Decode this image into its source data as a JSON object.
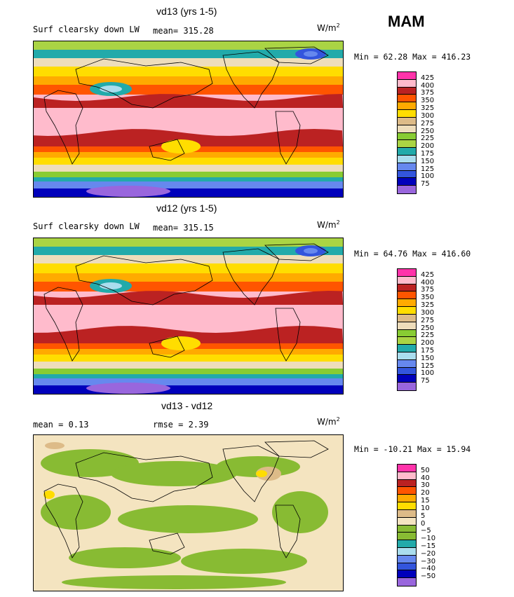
{
  "season": "MAM",
  "colors": {
    "abs": [
      "#9966dd",
      "#0000bb",
      "#3355dd",
      "#6688ee",
      "#aaddee",
      "#22aaaa",
      "#aad444",
      "#88cc33",
      "#eeddbb",
      "#ddbb88",
      "#ffdd00",
      "#ffaa00",
      "#ff5500",
      "#bb2222",
      "#ffbbcc",
      "#ff33aa"
    ],
    "diff": [
      "#9966dd",
      "#0000bb",
      "#3355dd",
      "#6688ee",
      "#aaddee",
      "#22aaaa",
      "#88bb33",
      "#88bb33",
      "#f4e4c0",
      "#ddbb88",
      "#ffdd00",
      "#ffaa00",
      "#ff5500",
      "#bb2222",
      "#ffbbcc",
      "#ff33aa"
    ]
  },
  "panels": [
    {
      "title": "vd13 (yrs 1-5)",
      "left_label": "Surf clearsky down LW",
      "stat_label": "mean= 315.28",
      "units": "W/m",
      "units_sup": "2",
      "minmax": "Min =  62.28 Max = 416.23",
      "ticks": [
        "425",
        "400",
        "375",
        "350",
        "325",
        "300",
        "275",
        "250",
        "225",
        "200",
        "175",
        "150",
        "125",
        "100",
        "75"
      ]
    },
    {
      "title": "vd12 (yrs 1-5)",
      "left_label": "Surf clearsky down LW",
      "stat_label": "mean= 315.15",
      "units": "W/m",
      "units_sup": "2",
      "minmax": "Min =  64.76 Max = 416.60",
      "ticks": [
        "425",
        "400",
        "375",
        "350",
        "325",
        "300",
        "275",
        "250",
        "225",
        "200",
        "175",
        "150",
        "125",
        "100",
        "75"
      ]
    },
    {
      "title": "vd13 - vd12",
      "left_label": "mean =   0.13",
      "stat_label": "rmse =   2.39",
      "units": "W/m",
      "units_sup": "2",
      "minmax": "Min = -10.21 Max =  15.94",
      "ticks": [
        "50",
        "40",
        "30",
        "20",
        "15",
        "10",
        "5",
        "0",
        "−5",
        "−10",
        "−15",
        "−20",
        "−30",
        "−40",
        "−50"
      ]
    }
  ]
}
